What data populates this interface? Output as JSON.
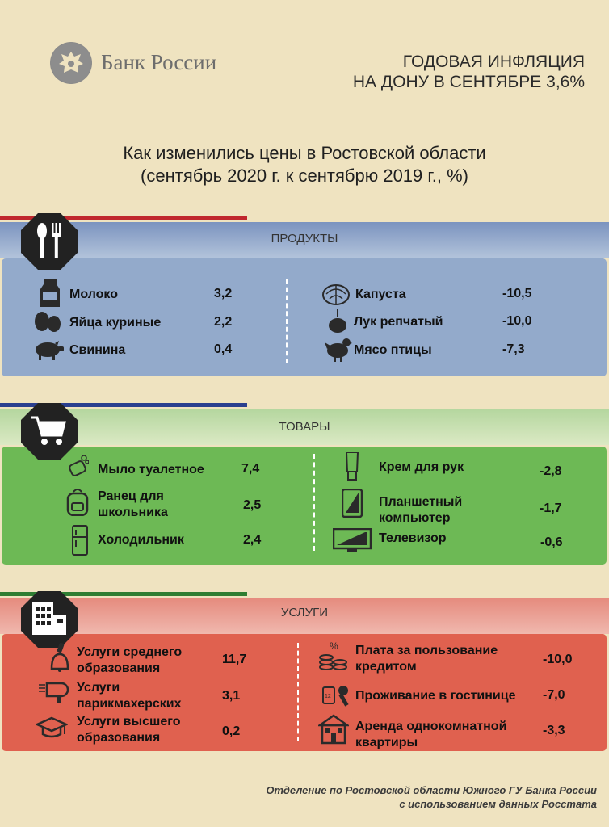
{
  "header": {
    "bank_name": "Банк России",
    "title_line1": "ГОДОВАЯ ИНФЛЯЦИЯ",
    "title_line2": "НА ДОНУ В СЕНТЯБРЕ 3,6%"
  },
  "subtitle": {
    "line1": "Как изменились цены в Ростовской области",
    "line2": "(сентябрь 2020 г. к сентябрю 2019 г., %)"
  },
  "sections": {
    "products": {
      "label": "ПРОДУКТЫ",
      "left": [
        {
          "name": "Молоко",
          "value": "3,2",
          "icon": "milk-carton-icon"
        },
        {
          "name": "Яйца куриные",
          "value": "2,2",
          "icon": "eggs-icon"
        },
        {
          "name": "Свинина",
          "value": "0,4",
          "icon": "pig-icon"
        }
      ],
      "right": [
        {
          "name": "Капуста",
          "value": "-10,5",
          "icon": "cabbage-icon"
        },
        {
          "name": "Лук репчатый",
          "value": "-10,0",
          "icon": "onion-icon"
        },
        {
          "name": "Мясо птицы",
          "value": "-7,3",
          "icon": "chicken-icon"
        }
      ]
    },
    "goods": {
      "label": "ТОВАРЫ",
      "left": [
        {
          "name_l1": "Мыло туалетное",
          "name_l2": "",
          "value": "7,4",
          "icon": "soap-icon"
        },
        {
          "name_l1": "Ранец для",
          "name_l2": "школьника",
          "value": "2,5",
          "icon": "backpack-icon"
        },
        {
          "name_l1": "Холодильник",
          "name_l2": "",
          "value": "2,4",
          "icon": "fridge-icon"
        }
      ],
      "right": [
        {
          "name_l1": "Крем для рук",
          "name_l2": "",
          "value": "-2,8",
          "icon": "cream-tube-icon"
        },
        {
          "name_l1": "Планшетный",
          "name_l2": "компьютер",
          "value": "-1,7",
          "icon": "tablet-icon"
        },
        {
          "name_l1": "Телевизор",
          "name_l2": "",
          "value": "-0,6",
          "icon": "tv-icon"
        }
      ]
    },
    "services": {
      "label": "УСЛУГИ",
      "left": [
        {
          "name_l1": "Услуги среднего",
          "name_l2": "образования",
          "value": "11,7",
          "icon": "school-bell-icon"
        },
        {
          "name_l1": "Услуги",
          "name_l2": "парикмахерских",
          "value": "3,1",
          "icon": "hair-dryer-icon"
        },
        {
          "name_l1": "Услуги высшего",
          "name_l2": "образования",
          "value": "0,2",
          "icon": "graduation-cap-icon"
        }
      ],
      "right": [
        {
          "name_l1": "Плата за пользование",
          "name_l2": "кредитом",
          "value": "-10,0",
          "icon": "coins-percent-icon"
        },
        {
          "name_l1": "Проживание в гостинице",
          "name_l2": "",
          "value": "-7,0",
          "icon": "hotel-key-icon"
        },
        {
          "name_l1": "Аренда однокомнатной",
          "name_l2": "квартиры",
          "value": "-3,3",
          "icon": "house-icon"
        }
      ]
    }
  },
  "footer": {
    "line1": "Отделение по Ростовской области Южного ГУ Банка России",
    "line2": "с использованием данных Росстата"
  },
  "colors": {
    "background": "#efe3c0",
    "products_panel": "#93aacb",
    "goods_panel": "#6db955",
    "services_panel": "#e0614f",
    "accent_red": "#c0272d",
    "accent_blue": "#2a3f8f",
    "accent_green": "#2f7d32"
  }
}
